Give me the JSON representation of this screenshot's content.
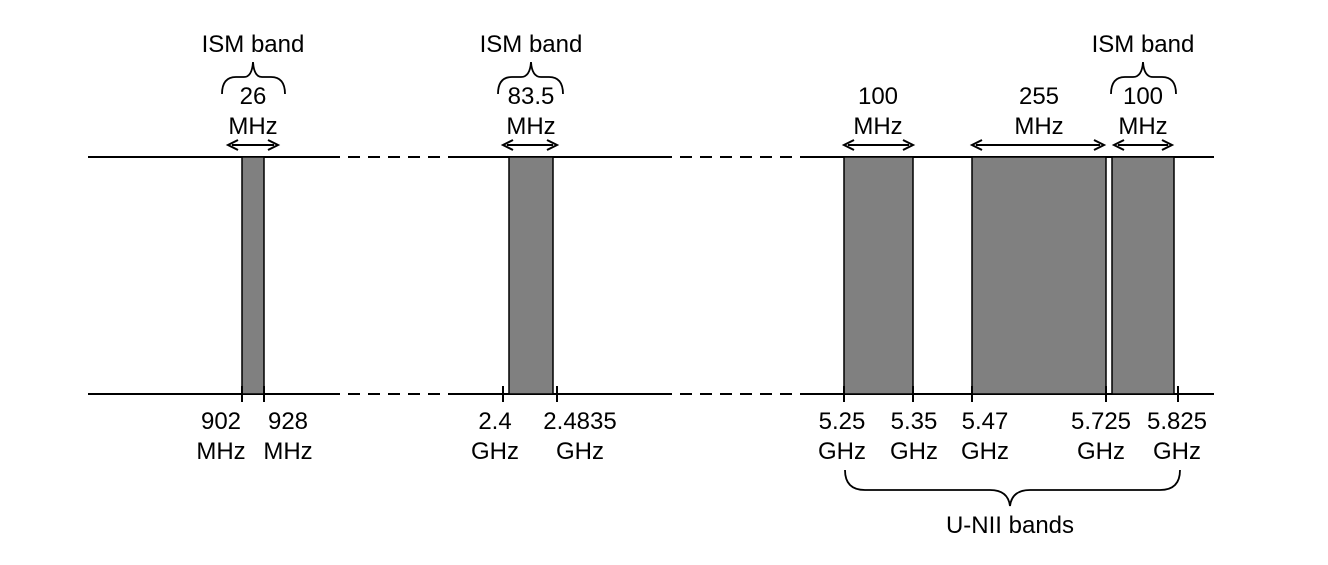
{
  "colors": {
    "band_fill": "#808080",
    "line": "#000000",
    "background": "#ffffff"
  },
  "ism_band_labels": [
    "ISM band",
    "ISM band",
    "ISM band"
  ],
  "widths": [
    {
      "value": "26",
      "unit": "MHz"
    },
    {
      "value": "83.5",
      "unit": "MHz"
    },
    {
      "value": "100",
      "unit": "MHz"
    },
    {
      "value": "255",
      "unit": "MHz"
    },
    {
      "value": "100",
      "unit": "MHz"
    }
  ],
  "frequencies": [
    {
      "value": "902",
      "unit": "MHz"
    },
    {
      "value": "928",
      "unit": "MHz"
    },
    {
      "value": "2.4",
      "unit": "GHz"
    },
    {
      "value": "2.4835",
      "unit": "GHz"
    },
    {
      "value": "5.25",
      "unit": "GHz"
    },
    {
      "value": "5.35",
      "unit": "GHz"
    },
    {
      "value": "5.47",
      "unit": "GHz"
    },
    {
      "value": "5.725",
      "unit": "GHz"
    },
    {
      "value": "5.825",
      "unit": "GHz"
    }
  ],
  "unii_label": "U-NII bands"
}
